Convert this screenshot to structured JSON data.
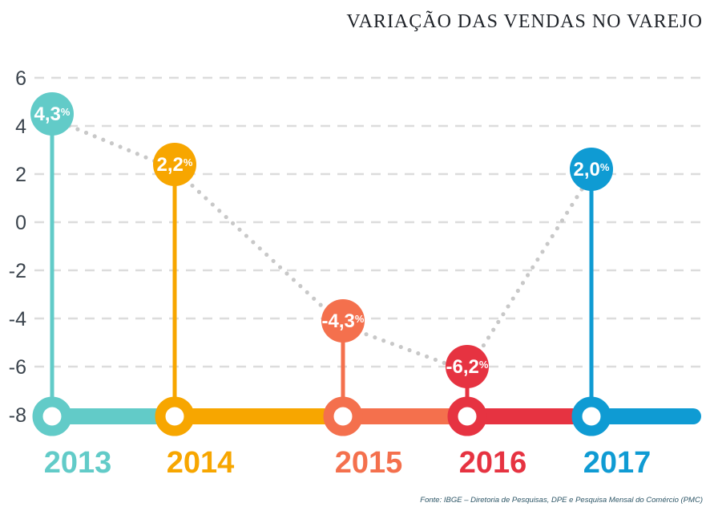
{
  "chart_data": {
    "type": "line",
    "subtype": "lollipop-timeline",
    "title": "VARIAÇÃO DAS VENDAS NO VAREJO",
    "categories": [
      "2013",
      "2014",
      "2015",
      "2016",
      "2017"
    ],
    "values": [
      4.3,
      2.2,
      -4.3,
      -6.2,
      2.0
    ],
    "value_labels": [
      "4,3",
      "2,2",
      "-4,3",
      "-6,2",
      "2,0"
    ],
    "unit": "%",
    "series_colors": [
      "#62cbc8",
      "#f7a600",
      "#f4704d",
      "#e63341",
      "#0f9bd3"
    ],
    "yticks": [
      6,
      4,
      2,
      0,
      -2,
      -4,
      -6,
      -8
    ],
    "ylim": [
      -8,
      6
    ],
    "xlabel": "",
    "ylabel": "",
    "grid": "horizontal-dashed",
    "legend": "none",
    "connector_color": "#c8c8c8",
    "grid_color": "#dcdcdc",
    "axis_label_color": "#3a434c",
    "source": "Fonte: IBGE – Diretoria de Pesquisas, DPE e Pesquisa Mensal do Comércio (PMC)"
  }
}
